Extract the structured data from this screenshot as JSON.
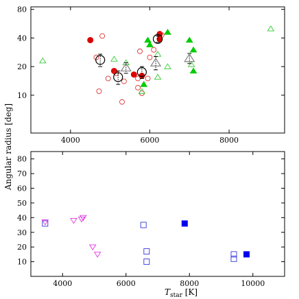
{
  "chart_data": [
    {
      "type": "scatter",
      "panel": "top",
      "xlim": [
        3000,
        9400
      ],
      "ylim": [
        4,
        85
      ],
      "y_scale": "log",
      "xticks": [
        4000,
        6000,
        8000
      ],
      "yticks": [
        10,
        20,
        40,
        80
      ],
      "xtick_labels": [
        "4000",
        "6000",
        "8000"
      ],
      "ytick_labels": [
        "10",
        "20",
        "40",
        "80"
      ],
      "series": [
        {
          "marker": "circle-filled",
          "color": "#dd0000",
          "points": [
            [
              4500,
              38
            ],
            [
              5600,
              16.5
            ],
            [
              5100,
              18
            ],
            [
              5800,
              16
            ],
            [
              6250,
              44
            ],
            [
              6250,
              39
            ]
          ]
        },
        {
          "marker": "circle-open",
          "color": "#dd3333",
          "points": [
            [
              4650,
              25
            ],
            [
              4720,
              11
            ],
            [
              4800,
              42
            ],
            [
              4950,
              15
            ],
            [
              5150,
              17
            ],
            [
              5300,
              8.5
            ],
            [
              5350,
              14
            ],
            [
              5700,
              12
            ],
            [
              5700,
              15
            ],
            [
              5750,
              29
            ],
            [
              5800,
              10.5
            ],
            [
              5950,
              15
            ],
            [
              6000,
              25
            ],
            [
              6100,
              30
            ],
            [
              6300,
              43
            ]
          ]
        },
        {
          "marker": "circle-ring-error",
          "color": "#000000",
          "points": [
            [
              4750,
              23.5,
              3.5
            ],
            [
              5200,
              15.5,
              2.5
            ],
            [
              5800,
              17.5,
              2.5
            ],
            [
              6200,
              39,
              3
            ]
          ]
        },
        {
          "marker": "triangle-filled",
          "color": "#00cc00",
          "points": [
            [
              5850,
              13
            ],
            [
              5950,
              38
            ],
            [
              6000,
              34
            ],
            [
              6450,
              46
            ],
            [
              7000,
              38
            ],
            [
              7100,
              30
            ],
            [
              7100,
              18
            ]
          ]
        },
        {
          "marker": "triangle-open",
          "color": "#33cc33",
          "points": [
            [
              3300,
              23
            ],
            [
              5100,
              24
            ],
            [
              5400,
              22
            ],
            [
              5800,
              11
            ],
            [
              6200,
              15.5
            ],
            [
              6200,
              27
            ],
            [
              6450,
              20
            ],
            [
              7050,
              21
            ],
            [
              9050,
              50
            ]
          ]
        },
        {
          "marker": "triangle-gray-error",
          "color": "#888888",
          "points": [
            [
              5400,
              19.5,
              2.5
            ],
            [
              6150,
              22,
              3.5
            ],
            [
              7000,
              24.5,
              3
            ]
          ]
        }
      ]
    },
    {
      "type": "scatter",
      "panel": "bottom",
      "xlim": [
        3000,
        11000
      ],
      "ylim": [
        0,
        85
      ],
      "xticks": [
        4000,
        6000,
        8000,
        10000
      ],
      "yticks": [
        10,
        20,
        30,
        40,
        50,
        60,
        70,
        80
      ],
      "xtick_labels": [
        "4000",
        "6000",
        "8000",
        "10000"
      ],
      "ytick_labels": [
        "10",
        "20",
        "30",
        "40",
        "50",
        "60",
        "70",
        "80"
      ],
      "series": [
        {
          "marker": "square-filled",
          "color": "#0000ee",
          "points": [
            [
              7850,
              36
            ],
            [
              9800,
              15
            ]
          ]
        },
        {
          "marker": "square-open",
          "color": "#3333dd",
          "points": [
            [
              3450,
              36
            ],
            [
              6550,
              35
            ],
            [
              6650,
              17
            ],
            [
              6650,
              10
            ],
            [
              9400,
              12
            ],
            [
              9400,
              15
            ]
          ]
        },
        {
          "marker": "triangle-down-open",
          "color": "#dd33dd",
          "points": [
            [
              3450,
              37
            ],
            [
              4350,
              38
            ],
            [
              4600,
              39
            ],
            [
              4650,
              40
            ],
            [
              4950,
              20
            ],
            [
              5100,
              15
            ]
          ]
        }
      ]
    }
  ],
  "xlabel": "T_star [K]",
  "xlabel_main": "T",
  "xlabel_sub": "star",
  "xlabel_unit": " [K]",
  "ylabel": "Angular radius [deg]"
}
